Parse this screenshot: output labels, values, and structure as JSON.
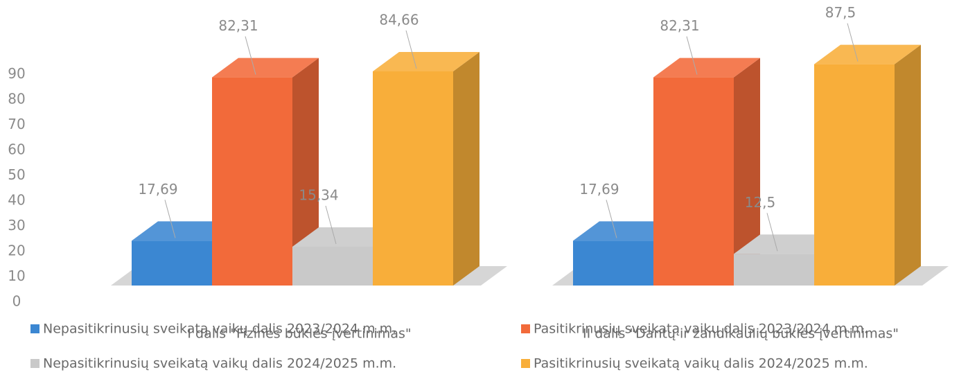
{
  "chart_data": {
    "type": "bar3d",
    "categories": [
      "I dalis \"Fizinės būklės įvertinimas\"",
      "II dalis \"Dantų ir žandikaulių būklės įvertinimas\""
    ],
    "series": [
      {
        "name": "Nepasitikrinusių sveikatą vaikų dalis 2023/2024 m.m.",
        "color": "#3b87d2",
        "values": [
          17.69,
          17.69
        ],
        "value_labels": [
          "17,69",
          "17,69"
        ]
      },
      {
        "name": "Pasitikrinusių sveikatą vaikų dalis 2023/2024 m.m.",
        "color": "#f26a3a",
        "values": [
          82.31,
          82.31
        ],
        "value_labels": [
          "82,31",
          "82,31"
        ]
      },
      {
        "name": "Nepasitikrinusių sveikatą vaikų dalis 2024/2025 m.m.",
        "color": "#c9c9c9",
        "values": [
          15.34,
          12.5
        ],
        "value_labels": [
          "15,34",
          "12,5"
        ]
      },
      {
        "name": "Pasitikrinusių sveikatą vaikų dalis 2024/2025 m.m.",
        "color": "#f8ae3a",
        "values": [
          84.66,
          87.5
        ],
        "value_labels": [
          "84,66",
          "87,5"
        ]
      }
    ],
    "ylim": [
      0,
      90
    ],
    "yticks": [
      0,
      10,
      20,
      30,
      40,
      50,
      60,
      70,
      80,
      90
    ],
    "legend": "bottom"
  }
}
